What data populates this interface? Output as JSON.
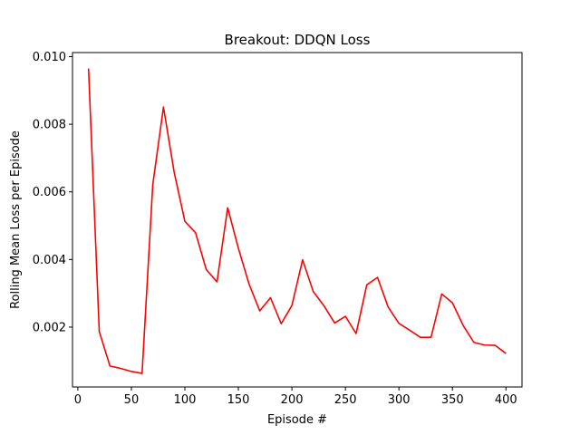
{
  "chart_data": {
    "type": "line",
    "title": "Breakout: DDQN Loss",
    "xlabel": "Episode #",
    "ylabel": "Rolling Mean Loss per Episode",
    "xlim": [
      -5,
      415
    ],
    "ylim": [
      0.00023,
      0.01012
    ],
    "xticks": [
      0,
      50,
      100,
      150,
      200,
      250,
      300,
      350,
      400
    ],
    "xtick_labels": [
      "0",
      "50",
      "100",
      "150",
      "200",
      "250",
      "300",
      "350",
      "400"
    ],
    "yticks": [
      0.002,
      0.004,
      0.006,
      0.008,
      0.01
    ],
    "ytick_labels": [
      "0.002",
      "0.004",
      "0.006",
      "0.008",
      "0.010"
    ],
    "grid": false,
    "legend": "none",
    "series": [
      {
        "color": "#ff0000",
        "x": [
          10,
          20,
          30,
          40,
          50,
          60,
          70,
          80,
          90,
          100,
          110,
          120,
          130,
          140,
          150,
          160,
          170,
          180,
          190,
          200,
          210,
          220,
          230,
          240,
          250,
          260,
          270,
          280,
          290,
          300,
          310,
          320,
          330,
          340,
          350,
          360,
          370,
          380,
          390,
          400
        ],
        "y": [
          0.00965,
          0.00187,
          0.00085,
          0.00078,
          0.00069,
          0.00063,
          0.00621,
          0.00851,
          0.00658,
          0.00513,
          0.00479,
          0.0037,
          0.00334,
          0.00553,
          0.00433,
          0.00327,
          0.00248,
          0.00287,
          0.0021,
          0.00264,
          0.00399,
          0.00305,
          0.00263,
          0.00212,
          0.00232,
          0.00181,
          0.00325,
          0.00347,
          0.00259,
          0.00211,
          0.00191,
          0.0017,
          0.0017,
          0.00298,
          0.00272,
          0.00205,
          0.00155,
          0.00147,
          0.00146,
          0.00122
        ]
      }
    ]
  }
}
